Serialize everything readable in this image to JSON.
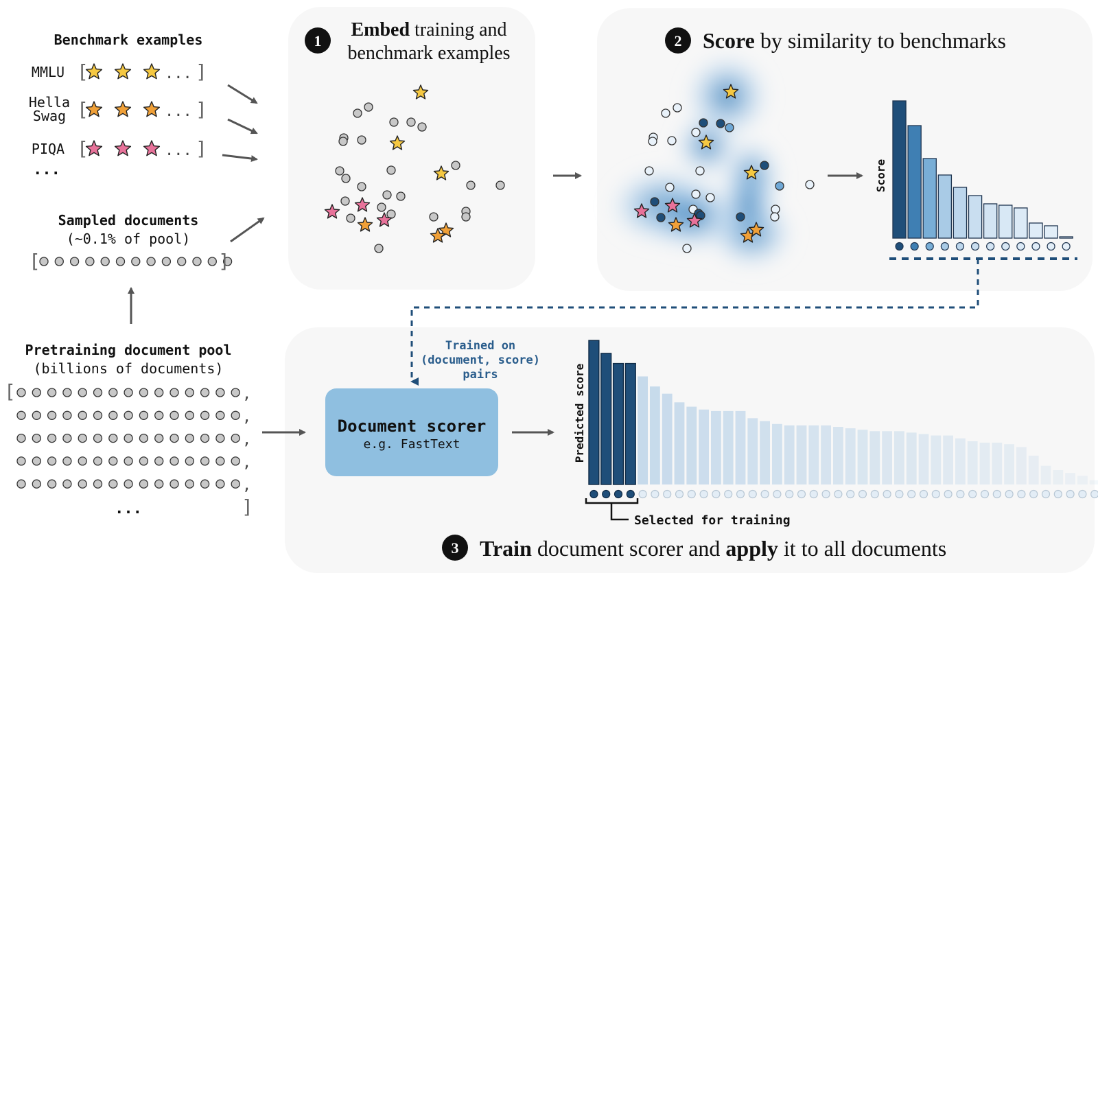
{
  "left": {
    "benchmark_title": "Benchmark examples",
    "benchmarks": [
      {
        "name_lines": [
          "MMLU"
        ],
        "star_color": "#f5c842"
      },
      {
        "name_lines": [
          "Hella",
          "Swag"
        ],
        "star_color": "#f0a038"
      },
      {
        "name_lines": [
          "PIQA"
        ],
        "star_color": "#e8729a"
      }
    ],
    "benchmark_more": "...",
    "list_ellipsis": "...",
    "open_bracket": "[",
    "close_bracket": "]",
    "comma": ",",
    "sampled_title": "Sampled documents",
    "sampled_subtitle": "(~0.1% of pool)",
    "pool_title": "Pretraining document pool",
    "pool_subtitle": "(billions of documents)",
    "pool_ellipsis": "..."
  },
  "step1": {
    "number": "1",
    "title_bold": "Embed",
    "title_rest_line1": " training and",
    "title_line2": "benchmark examples"
  },
  "step2": {
    "number": "2",
    "title_bold": "Score",
    "title_rest": " by similarity to benchmarks",
    "ylabel": "Score"
  },
  "step3": {
    "number": "3",
    "title_bold1": "Train",
    "title_mid": " document scorer and ",
    "title_bold2": "apply",
    "title_end": " it to all documents",
    "trained_on_lines": [
      "Trained on",
      "(document, score)",
      "pairs"
    ],
    "scorer_title": "Document scorer",
    "scorer_subtitle": "e.g. FastText",
    "ylabel": "Predicted score",
    "selected_label": "Selected for training"
  },
  "colors": {
    "panel_bg": "#f7f7f7",
    "dark_blue": "#1f4e79",
    "scorer_box": "#8fbfe0",
    "doc_gray": "#c8c8c8",
    "annotation_blue": "#2a5d8c"
  },
  "chart_data": [
    {
      "type": "bar",
      "ylabel": "Score",
      "values": [
        100,
        82,
        58,
        46,
        37,
        31,
        25,
        24,
        22,
        11,
        9,
        1
      ],
      "bar_colors": [
        "#1f4e79",
        "#3f7fb3",
        "#79aed6",
        "#a9cbe6",
        "#bcd6ec",
        "#c9def0",
        "#d3e4f3",
        "#d8e8f5",
        "#dceaf6",
        "#dfecf7",
        "#e2eef8",
        "#e6f0f9"
      ]
    },
    {
      "type": "bar",
      "ylabel": "Predicted score",
      "selected_count": 4,
      "values": [
        100,
        91,
        84,
        84,
        75,
        68,
        63,
        57,
        54,
        52,
        51,
        51,
        51,
        46,
        44,
        42,
        41,
        41,
        41,
        41,
        40,
        39,
        38,
        37,
        37,
        37,
        36,
        35,
        34,
        34,
        32,
        30,
        29,
        29,
        28,
        26,
        20,
        13,
        10,
        8,
        6,
        3,
        2
      ]
    }
  ]
}
